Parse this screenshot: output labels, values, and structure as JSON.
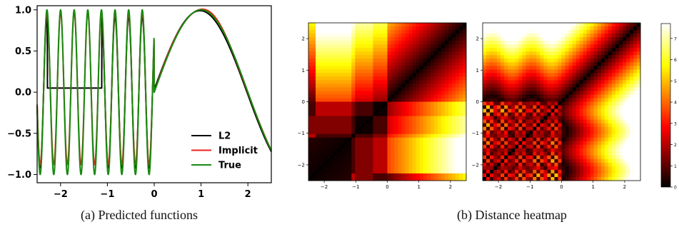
{
  "captions": {
    "a": "(a) Predicted functions",
    "b": "(b) Distance heatmap"
  },
  "chart_data": [
    {
      "type": "line",
      "title": "",
      "xlim": [
        -2.5,
        2.5
      ],
      "ylim": [
        -1.1,
        1.05
      ],
      "xticks": [
        -2,
        -1,
        0,
        1,
        2
      ],
      "xticklabels": [
        "−2",
        "−1",
        "0",
        "1",
        "2"
      ],
      "yticks": [
        -1.0,
        -0.5,
        0.0,
        0.5,
        1.0
      ],
      "yticklabels": [
        "−1.0",
        "−0.5",
        "0.0",
        "0.5",
        "1.0"
      ],
      "grid": false,
      "legend_position": "bottom-right",
      "series": [
        {
          "name": "L2",
          "color": "#000000"
        },
        {
          "name": "Implicit",
          "color": "#e8231a"
        },
        {
          "name": "True",
          "color": "#1a8a12"
        }
      ],
      "function_desc": {
        "true_left": {
          "x_range": [
            -2.5,
            0
          ],
          "form": "sin(2*pi*f*x + phase)",
          "approx_cycles": 8.6
        },
        "true_right": {
          "x_range": [
            0,
            2.5
          ],
          "form": "sin(pi*x/2)",
          "peak": [
            1.0,
            0.97
          ]
        },
        "l2_left_plateau": {
          "x_range": [
            -2.28,
            -1.12
          ],
          "value": 0.05
        }
      }
    },
    {
      "type": "heatmap",
      "title": "",
      "colormap": "hot",
      "extent": [
        -2.5,
        2.5
      ],
      "xticks": [
        -2,
        -1,
        0,
        1,
        2
      ],
      "xticklabels": [
        "−2",
        "−1",
        "0",
        "1",
        "2"
      ],
      "yticks": [
        -2,
        -1,
        0,
        1,
        2
      ],
      "yticklabels": [
        "−2",
        "−1",
        "0",
        "1",
        "2"
      ],
      "panels": [
        "left",
        "right"
      ],
      "colorbar": {
        "min": 0,
        "max": 7.7,
        "ticks": [
          0,
          1,
          2,
          3,
          4,
          5,
          6,
          7
        ],
        "ticklabels": [
          "0",
          "1",
          "2",
          "3",
          "4",
          "5",
          "6",
          "7"
        ]
      }
    }
  ]
}
